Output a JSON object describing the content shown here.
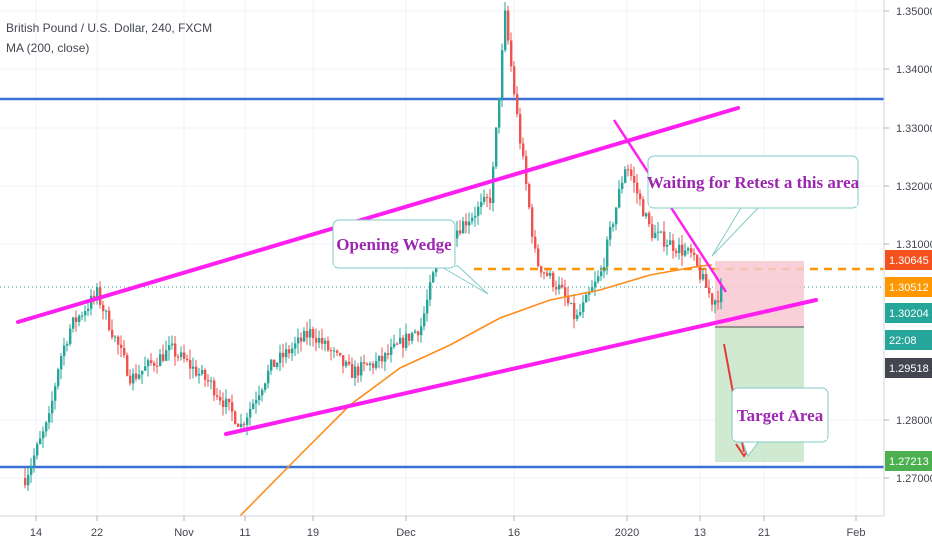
{
  "header": {
    "symbol": "British Pound / U.S. Dollar, 240, FXCM",
    "indicator": "MA (200, close)"
  },
  "colors": {
    "up": "#26a69a",
    "down": "#ef5350",
    "ma": "#ff8c1a",
    "wedge": "#ff1ff0",
    "level": "#3a6fd8",
    "dashed": "#ff9800",
    "annotation_text": "#9c27b0",
    "target_fill": "#c8e6c9",
    "stop_fill": "#f8c8d0"
  },
  "chart_data": {
    "type": "candlestick",
    "x_ticks": [
      "14",
      "22",
      "Nov",
      "11",
      "19",
      "Dec",
      "16",
      "2020",
      "13",
      "21",
      "Feb"
    ],
    "y_ticks": [
      "1.35000",
      "1.34000",
      "1.33000",
      "1.32000",
      "1.31000",
      "1.28000",
      "1.27000"
    ],
    "ylim": [
      1.265,
      1.3535
    ],
    "price_labels": [
      {
        "value": "1.30645",
        "role": "entry-dashed-level",
        "color": "#f4511e"
      },
      {
        "value": "1.30512",
        "role": "ma-200",
        "color": "#ff9800"
      },
      {
        "value": "1.30204",
        "role": "last-price",
        "color": "#26a69a"
      },
      {
        "value": "22:08",
        "role": "countdown",
        "color": "#26a69a"
      },
      {
        "value": "1.29518",
        "role": "stop-level",
        "color": "#434651"
      },
      {
        "value": "1.27213",
        "role": "target-level",
        "color": "#4caf50"
      }
    ],
    "horizontal_levels": [
      1.3347,
      1.2721
    ],
    "dashed_level": 1.30645,
    "grid": true,
    "annotations": {
      "opening_wedge": "Opening Wedge",
      "waiting": "Waiting for Retest a this area",
      "target": "Target Area"
    }
  }
}
